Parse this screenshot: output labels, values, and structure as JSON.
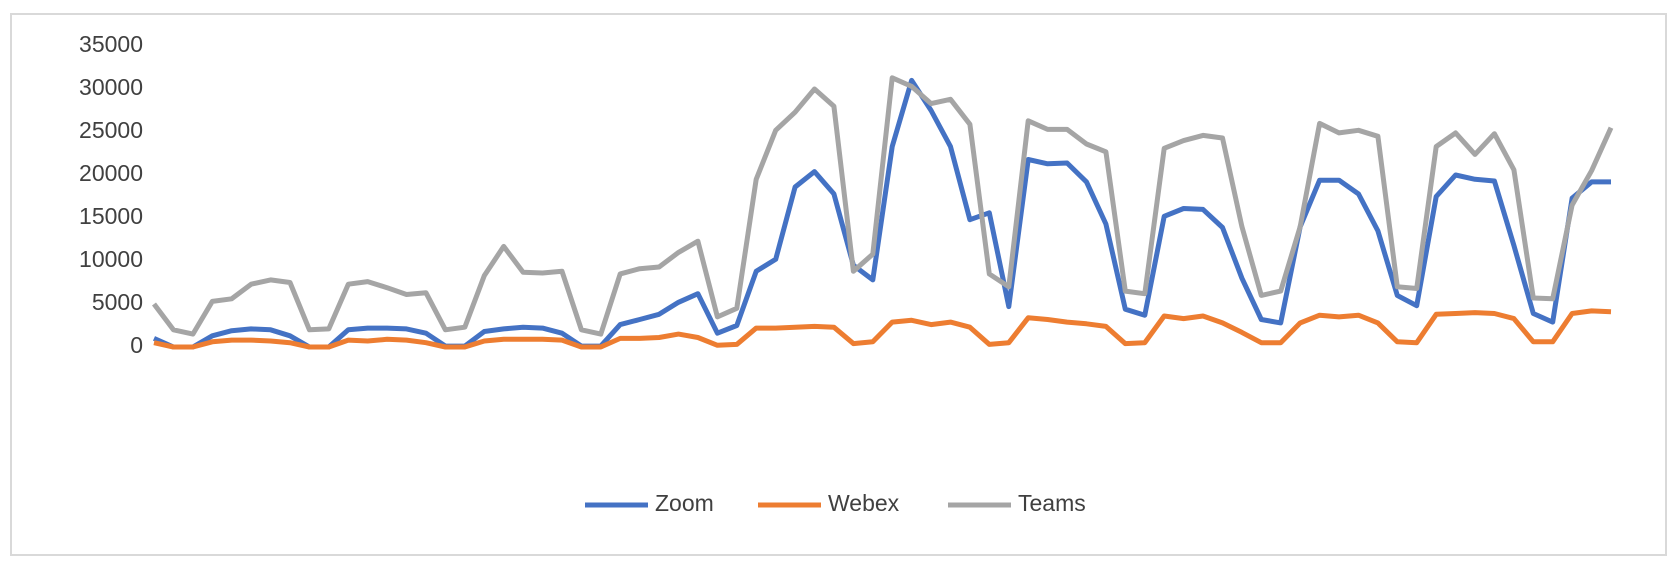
{
  "chart_data": {
    "type": "line",
    "ylim": [
      0,
      35000
    ],
    "yticks": [
      0,
      5000,
      10000,
      15000,
      20000,
      25000,
      30000,
      35000
    ],
    "grid": false,
    "legend": "bottom",
    "series": [
      {
        "name": "Zoom",
        "color": "#4472c4",
        "values": [
          1000,
          0,
          0,
          1300,
          1900,
          2100,
          2000,
          1300,
          0,
          0,
          2000,
          2200,
          2200,
          2100,
          1600,
          100,
          100,
          1800,
          2100,
          2300,
          2200,
          1600,
          100,
          100,
          2600,
          3200,
          3800,
          5200,
          6200,
          1600,
          2500,
          8800,
          10200,
          18600,
          20400,
          17800,
          9500,
          7800,
          23300,
          31000,
          27500,
          23300,
          14800,
          15600,
          4700,
          21800,
          21300,
          21400,
          19200,
          14300,
          4400,
          3700,
          15200,
          16100,
          16000,
          13900,
          8000,
          3200,
          2800,
          14000,
          19400,
          19400,
          17800,
          13500,
          6000,
          4800,
          17500,
          20000,
          19500,
          19300,
          11800,
          3900,
          2900,
          17300,
          19200,
          19200
        ]
      },
      {
        "name": "Webex",
        "color": "#ed7d31",
        "values": [
          500,
          0,
          0,
          600,
          800,
          800,
          700,
          500,
          0,
          0,
          800,
          700,
          900,
          800,
          500,
          0,
          0,
          700,
          900,
          900,
          900,
          800,
          0,
          0,
          1000,
          1000,
          1100,
          1500,
          1100,
          200,
          300,
          2200,
          2200,
          2300,
          2400,
          2300,
          400,
          600,
          2900,
          3100,
          2600,
          2900,
          2300,
          300,
          500,
          3400,
          3200,
          2900,
          2700,
          2400,
          400,
          500,
          3600,
          3300,
          3600,
          2800,
          1700,
          500,
          500,
          2800,
          3700,
          3500,
          3700,
          2800,
          600,
          500,
          3800,
          3900,
          4000,
          3900,
          3300,
          600,
          600,
          3900,
          4200,
          4100
        ]
      },
      {
        "name": "Teams",
        "color": "#a5a5a5",
        "values": [
          5000,
          2000,
          1500,
          5300,
          5600,
          7300,
          7800,
          7500,
          2000,
          2100,
          7300,
          7600,
          6900,
          6100,
          6300,
          2000,
          2300,
          8300,
          11700,
          8700,
          8600,
          8800,
          2000,
          1500,
          8500,
          9100,
          9300,
          11000,
          12300,
          3500,
          4500,
          19500,
          25200,
          27300,
          30000,
          28000,
          8800,
          10800,
          31300,
          30300,
          28300,
          28800,
          25900,
          8500,
          7000,
          26300,
          25300,
          25300,
          23600,
          22700,
          6500,
          6200,
          23100,
          24000,
          24600,
          24300,
          14000,
          6000,
          6500,
          14000,
          26000,
          24900,
          25200,
          24500,
          7000,
          6800,
          23300,
          24900,
          22400,
          24800,
          20600,
          5700,
          5600,
          16500,
          20500,
          25500
        ]
      }
    ]
  }
}
